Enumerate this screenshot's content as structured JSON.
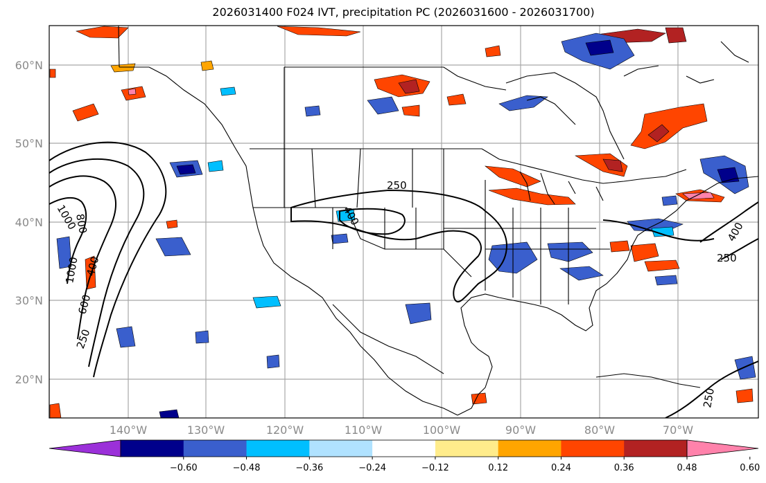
{
  "title": "2026031400 F024 IVT, precipitation PC (2026031600 - 2026031700)",
  "lat_labels": [
    "60°N",
    "50°N",
    "40°N",
    "30°N",
    "20°N"
  ],
  "lon_labels": [
    "140°W",
    "130°W",
    "120°W",
    "110°W",
    "100°W",
    "90°W",
    "80°W",
    "70°W"
  ],
  "contour_labels": [
    "250",
    "400",
    "600",
    "800",
    "1000",
    "1000",
    "250",
    "400",
    "250",
    "400",
    "250"
  ],
  "colorbar": {
    "colors": [
      "#9b30d9",
      "#00008b",
      "#3a5fcd",
      "#00bfff",
      "#b0e2ff",
      "#ffffff",
      "#ffec8b",
      "#ffa500",
      "#ff4500",
      "#b22222",
      "#ff82ab"
    ],
    "tick_labels": [
      "−0.60",
      "−0.48",
      "−0.36",
      "−0.24",
      "−0.12",
      "0.12",
      "0.24",
      "0.36",
      "0.48",
      "0.60"
    ]
  }
}
